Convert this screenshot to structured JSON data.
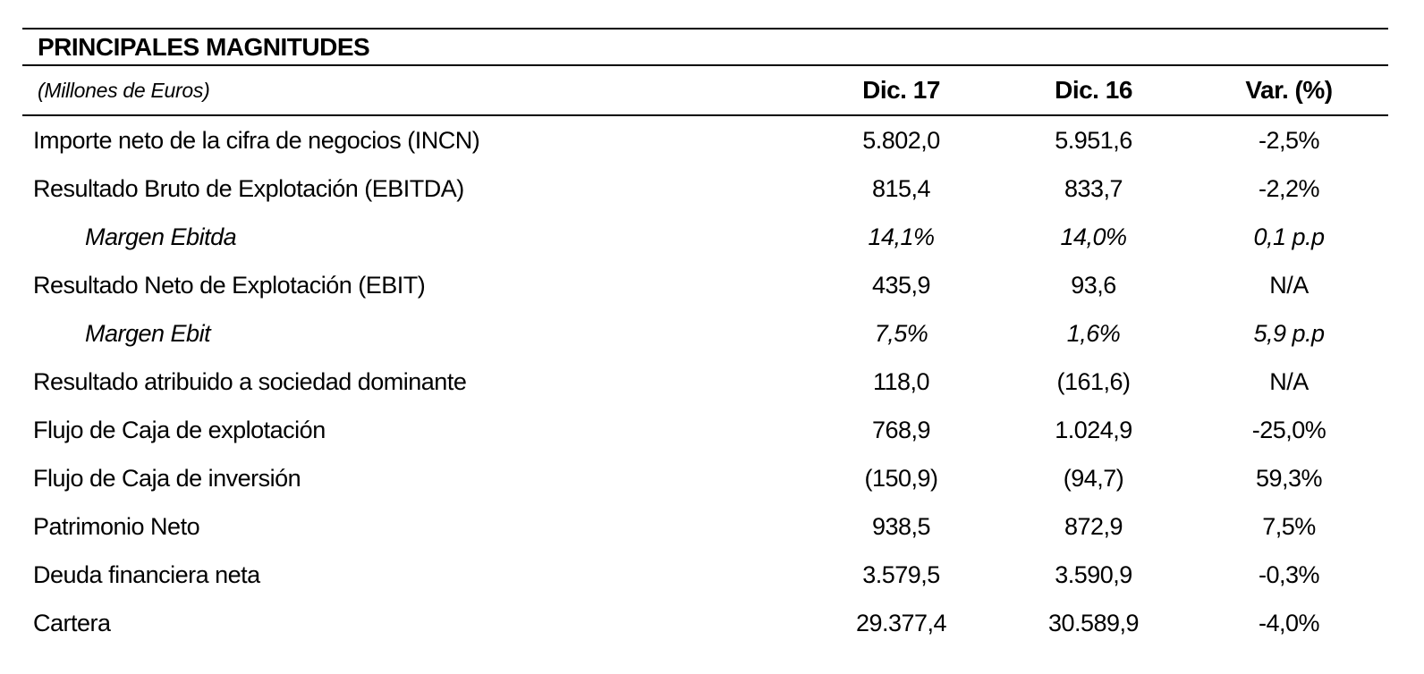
{
  "table": {
    "title": "PRINCIPALES MAGNITUDES",
    "subtitle": "(Millones de Euros)",
    "columns": [
      "Dic. 17",
      "Dic. 16",
      "Var. (%)"
    ],
    "rows": [
      {
        "label": "Importe neto de la cifra de negocios (INCN)",
        "dic17": "5.802,0",
        "dic16": "5.951,6",
        "var": "-2,5%",
        "italic": false,
        "indent": false
      },
      {
        "label": "Resultado Bruto de Explotación (EBITDA)",
        "dic17": "815,4",
        "dic16": "833,7",
        "var": "-2,2%",
        "italic": false,
        "indent": false
      },
      {
        "label": "Margen Ebitda",
        "dic17": "14,1%",
        "dic16": "14,0%",
        "var": "0,1 p.p",
        "italic": true,
        "indent": true
      },
      {
        "label": "Resultado Neto de Explotación (EBIT)",
        "dic17": "435,9",
        "dic16": "93,6",
        "var": "N/A",
        "italic": false,
        "indent": false
      },
      {
        "label": "Margen Ebit",
        "dic17": "7,5%",
        "dic16": "1,6%",
        "var": "5,9 p.p",
        "italic": true,
        "indent": true
      },
      {
        "label": "Resultado atribuido a sociedad dominante",
        "dic17": "118,0",
        "dic16": "(161,6)",
        "var": "N/A",
        "italic": false,
        "indent": false
      },
      {
        "label": "Flujo de Caja de explotación",
        "dic17": "768,9",
        "dic16": "1.024,9",
        "var": "-25,0%",
        "italic": false,
        "indent": false
      },
      {
        "label": "Flujo de Caja de inversión",
        "dic17": "(150,9)",
        "dic16": "(94,7)",
        "var": "59,3%",
        "italic": false,
        "indent": false
      },
      {
        "label": "Patrimonio Neto",
        "dic17": "938,5",
        "dic16": "872,9",
        "var": "7,5%",
        "italic": false,
        "indent": false
      },
      {
        "label": "Deuda financiera neta",
        "dic17": "3.579,5",
        "dic16": "3.590,9",
        "var": "-0,3%",
        "italic": false,
        "indent": false
      },
      {
        "label": "Cartera",
        "dic17": "29.377,4",
        "dic16": "30.589,9",
        "var": "-4,0%",
        "italic": false,
        "indent": false
      }
    ],
    "colors": {
      "text": "#000000",
      "rule": "#000000",
      "background": "#ffffff"
    }
  }
}
